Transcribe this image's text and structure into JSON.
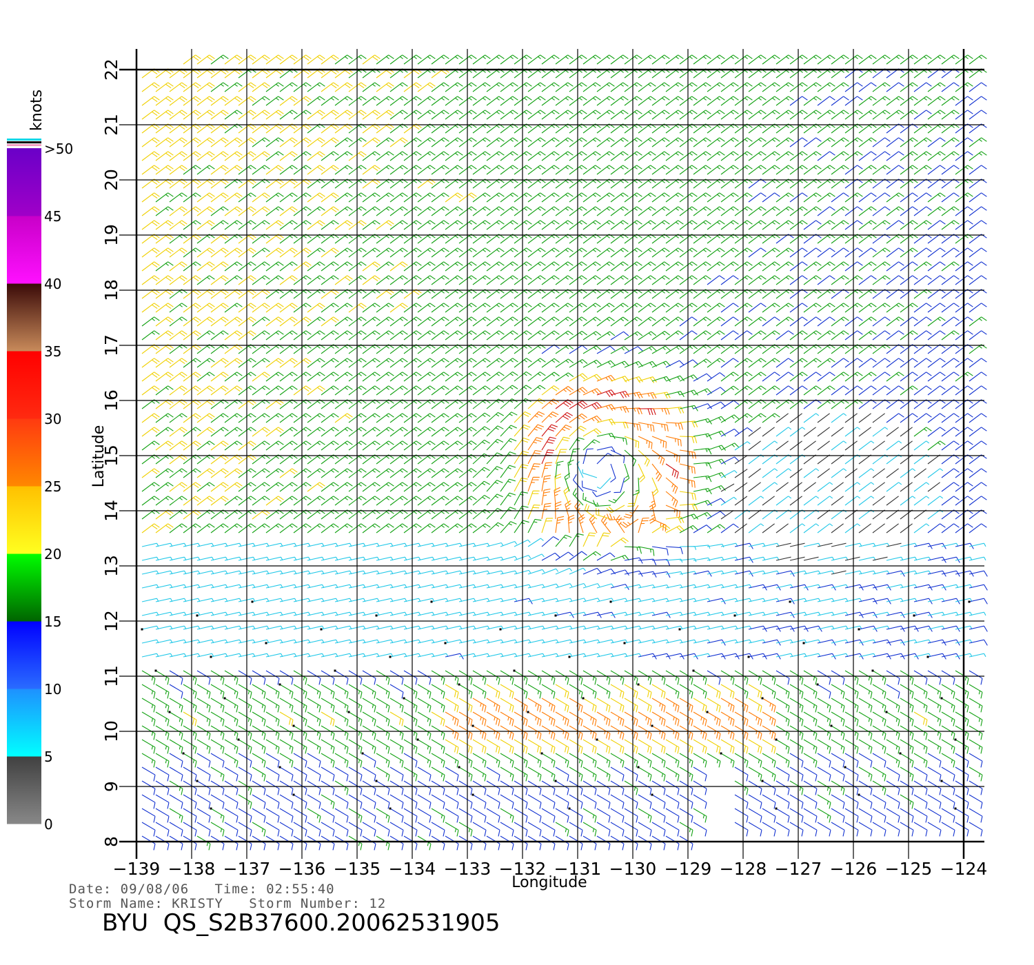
{
  "colorbar": {
    "title": "knots",
    "bands": [
      {
        "from": 0,
        "to": 5,
        "top": "#404040",
        "bottom": "#888888"
      },
      {
        "from": 5,
        "to": 10,
        "top": "#1e90ff",
        "bottom": "#00ffff"
      },
      {
        "from": 10,
        "to": 15,
        "top": "#0000ff",
        "bottom": "#2a6cff"
      },
      {
        "from": 15,
        "to": 20,
        "top": "#00ff00",
        "bottom": "#006400"
      },
      {
        "from": 20,
        "to": 25,
        "top": "#ffc000",
        "bottom": "#ffff20"
      },
      {
        "from": 25,
        "to": 30,
        "top": "#ff3a10",
        "bottom": "#ff8800"
      },
      {
        "from": 30,
        "to": 35,
        "top": "#ff0000",
        "bottom": "#ff2a10"
      },
      {
        "from": 35,
        "to": 40,
        "top": "#3a0a08",
        "bottom": "#c88a5a"
      },
      {
        "from": 40,
        "to": 45,
        "top": "#c800c8",
        "bottom": "#ff10ff"
      },
      {
        "from": 45,
        "to": 50,
        "top": "#6a00c8",
        "bottom": "#a000c8"
      }
    ],
    "labels": [
      ">50",
      "45",
      "40",
      "35",
      "30",
      "25",
      "20",
      "15",
      "10",
      "5",
      "0"
    ]
  },
  "chart_data": {
    "type": "scatter",
    "kind": "QuikSCAT wind barb plot",
    "xlabel": "Longitude",
    "ylabel": "Latitude",
    "xlim": [
      -139,
      -124
    ],
    "ylim": [
      8,
      22
    ],
    "xticks": [
      "−139",
      "−138",
      "−137",
      "−136",
      "−135",
      "−134",
      "−133",
      "−132",
      "−131",
      "−130",
      "−129",
      "−128",
      "−127",
      "−126",
      "−125",
      "−124"
    ],
    "yticks": [
      "8",
      "9",
      "10",
      "11",
      "12",
      "13",
      "14",
      "15",
      "16",
      "17",
      "18",
      "19",
      "20",
      "21",
      "22"
    ],
    "grid": true,
    "units": "knots",
    "storm_center": {
      "lon": -130.6,
      "lat": 14.8
    },
    "speed_colors": [
      {
        "max": 5,
        "color": "#333333"
      },
      {
        "max": 10,
        "color": "#22c8e8"
      },
      {
        "max": 15,
        "color": "#1030d0"
      },
      {
        "max": 20,
        "color": "#10a010"
      },
      {
        "max": 25,
        "color": "#f0d000"
      },
      {
        "max": 30,
        "color": "#ff7a00"
      },
      {
        "max": 35,
        "color": "#d01010"
      }
    ]
  },
  "footer": {
    "date_line": "Date: 09/08/06   Time: 02:55:40",
    "storm_line": "Storm Name: KRISTY   Storm Number: 12",
    "product": "BYU  QS_S2B37600.20062531905"
  }
}
